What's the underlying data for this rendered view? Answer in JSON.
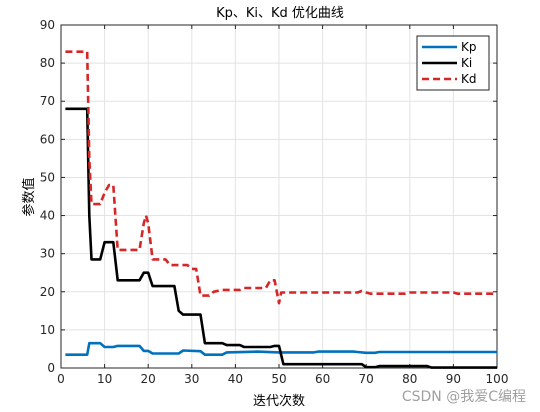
{
  "chart_data": {
    "type": "line",
    "title": "Kp、Ki、Kd 优化曲线",
    "xlabel": "迭代次数",
    "ylabel": "参数值",
    "xlim": [
      0,
      100
    ],
    "ylim": [
      0,
      90
    ],
    "xticks": [
      0,
      10,
      20,
      30,
      40,
      50,
      60,
      70,
      80,
      90,
      100
    ],
    "yticks": [
      0,
      10,
      20,
      30,
      40,
      50,
      60,
      70,
      80,
      90
    ],
    "grid": true,
    "legend_position": "top-right",
    "series": [
      {
        "name": "Kp",
        "color": "#0072BD",
        "style": "solid",
        "points": [
          [
            1,
            3.5
          ],
          [
            6,
            3.5
          ],
          [
            6.5,
            6.5
          ],
          [
            9,
            6.5
          ],
          [
            10,
            5.5
          ],
          [
            12,
            5.5
          ],
          [
            13,
            5.8
          ],
          [
            18,
            5.8
          ],
          [
            19,
            4.5
          ],
          [
            20,
            4.5
          ],
          [
            21,
            3.8
          ],
          [
            27,
            3.8
          ],
          [
            28,
            4.6
          ],
          [
            32,
            4.4
          ],
          [
            33,
            3.5
          ],
          [
            37,
            3.5
          ],
          [
            38,
            4.1
          ],
          [
            45,
            4.3
          ],
          [
            50,
            4.1
          ],
          [
            58,
            4.1
          ],
          [
            59,
            4.3
          ],
          [
            67,
            4.3
          ],
          [
            68,
            4.2
          ],
          [
            70,
            4.0
          ],
          [
            72,
            4.0
          ],
          [
            73,
            4.2
          ],
          [
            100,
            4.2
          ]
        ]
      },
      {
        "name": "Ki",
        "color": "#000000",
        "style": "solid",
        "points": [
          [
            1,
            68
          ],
          [
            6,
            68
          ],
          [
            6.5,
            40
          ],
          [
            7,
            28.5
          ],
          [
            9,
            28.5
          ],
          [
            10,
            33
          ],
          [
            12,
            33
          ],
          [
            13,
            23
          ],
          [
            18,
            23
          ],
          [
            19,
            25
          ],
          [
            20,
            25
          ],
          [
            21,
            21.5
          ],
          [
            26,
            21.5
          ],
          [
            27,
            15
          ],
          [
            28,
            14
          ],
          [
            32,
            14
          ],
          [
            33,
            6.5
          ],
          [
            37,
            6.5
          ],
          [
            38,
            6
          ],
          [
            41,
            6
          ],
          [
            42,
            5.5
          ],
          [
            48,
            5.5
          ],
          [
            49,
            5.8
          ],
          [
            50,
            5.8
          ],
          [
            51,
            1
          ],
          [
            67,
            1
          ],
          [
            68,
            1
          ],
          [
            69,
            1
          ],
          [
            70,
            0.2
          ],
          [
            72,
            0.2
          ],
          [
            73,
            0.5
          ],
          [
            84,
            0.5
          ],
          [
            85,
            0.1
          ],
          [
            100,
            0.1
          ]
        ]
      },
      {
        "name": "Kd",
        "color": "#D62728",
        "style": "dashed",
        "points": [
          [
            1,
            83
          ],
          [
            6,
            83
          ],
          [
            6.5,
            55
          ],
          [
            7,
            43
          ],
          [
            9,
            43
          ],
          [
            10,
            46
          ],
          [
            11,
            48
          ],
          [
            12,
            48
          ],
          [
            13,
            31
          ],
          [
            18,
            31
          ],
          [
            19,
            38
          ],
          [
            19.5,
            40
          ],
          [
            20,
            38
          ],
          [
            21,
            28.5
          ],
          [
            24,
            28.5
          ],
          [
            25,
            27
          ],
          [
            29,
            27
          ],
          [
            30,
            26
          ],
          [
            31,
            26
          ],
          [
            32,
            19
          ],
          [
            34,
            19
          ],
          [
            35,
            20
          ],
          [
            37,
            20.5
          ],
          [
            41,
            20.5
          ],
          [
            42,
            21
          ],
          [
            47,
            21
          ],
          [
            48,
            23
          ],
          [
            49,
            23
          ],
          [
            50,
            17
          ],
          [
            50.5,
            19.8
          ],
          [
            60,
            19.8
          ],
          [
            68,
            19.8
          ],
          [
            69,
            20.2
          ],
          [
            70,
            19.8
          ],
          [
            71,
            19.5
          ],
          [
            79,
            19.5
          ],
          [
            80,
            19.8
          ],
          [
            90,
            19.8
          ],
          [
            91,
            19.5
          ],
          [
            100,
            19.5
          ]
        ]
      }
    ]
  },
  "watermark": "CSDN @我爱C编程"
}
